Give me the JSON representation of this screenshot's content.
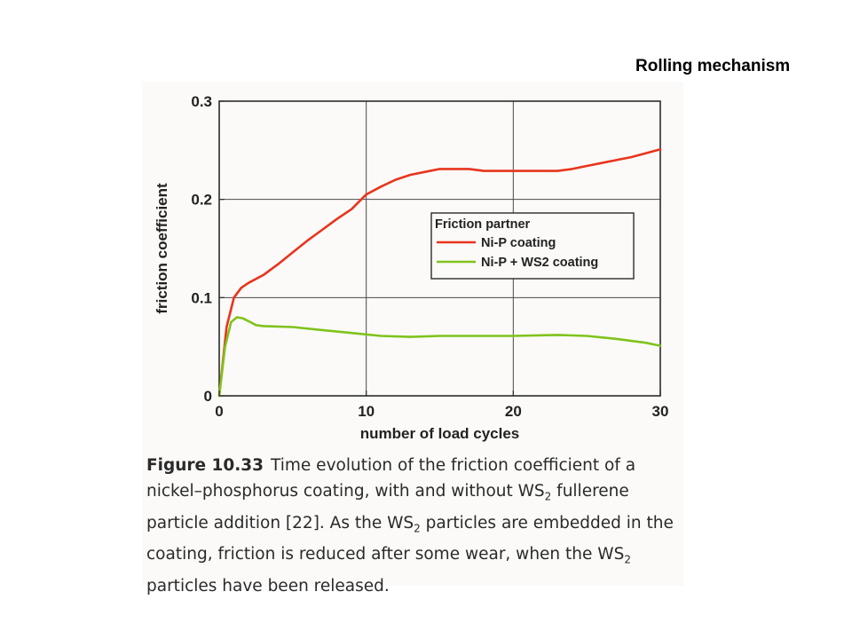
{
  "slide": {
    "title": "Rolling mechanism"
  },
  "chart_data": {
    "type": "line",
    "title": "",
    "xlabel": "number of load cycles",
    "ylabel": "friction coefficient",
    "xlim": [
      0,
      30
    ],
    "ylim": [
      0,
      0.3
    ],
    "xticks": [
      0,
      10,
      20,
      30
    ],
    "yticks": [
      0,
      0.1,
      0.2,
      0.3
    ],
    "xtick_labels": [
      "0",
      "10",
      "20",
      "30"
    ],
    "ytick_labels": [
      "0",
      "0.1",
      "0.2",
      "0.3"
    ],
    "grid": true,
    "legend_position": "center-right",
    "legend_title": "Friction partner",
    "series": [
      {
        "name": "Ni-P coating",
        "color": "#e8341c",
        "x": [
          0,
          0.5,
          1,
          1.5,
          2,
          3,
          4,
          5,
          6,
          7,
          8,
          9,
          10,
          11,
          12,
          13,
          14,
          15,
          16,
          17,
          18,
          19,
          20,
          21,
          22,
          23,
          24,
          25,
          26,
          27,
          28,
          29,
          30
        ],
        "y": [
          0,
          0.07,
          0.1,
          0.11,
          0.115,
          0.123,
          0.134,
          0.146,
          0.158,
          0.169,
          0.18,
          0.19,
          0.205,
          0.213,
          0.22,
          0.225,
          0.228,
          0.231,
          0.231,
          0.231,
          0.229,
          0.229,
          0.229,
          0.229,
          0.229,
          0.229,
          0.231,
          0.234,
          0.237,
          0.24,
          0.243,
          0.247,
          0.251
        ]
      },
      {
        "name": "Ni-P + WS2 coating",
        "color": "#7fc31c",
        "x": [
          0,
          0.4,
          0.8,
          1.2,
          1.6,
          2,
          2.5,
          3,
          5,
          7,
          9,
          11,
          13,
          15,
          17,
          20,
          23,
          25,
          27,
          29,
          30
        ],
        "y": [
          0,
          0.05,
          0.075,
          0.08,
          0.079,
          0.076,
          0.072,
          0.071,
          0.07,
          0.067,
          0.064,
          0.061,
          0.06,
          0.061,
          0.061,
          0.061,
          0.062,
          0.061,
          0.058,
          0.054,
          0.051
        ]
      }
    ]
  },
  "caption": {
    "label": "Figure 10.33",
    "text_1": "Time evolution of the friction coefficient of a nickel–phosphorus coating, with and without WS",
    "sub_1": "2",
    "text_2": " fullerene particle addition [22]. As the WS",
    "sub_2": "2",
    "text_3": " particles are embedded in the coating, friction is reduced after some wear, when the WS",
    "sub_3": "2",
    "text_4": " particles have been released."
  }
}
